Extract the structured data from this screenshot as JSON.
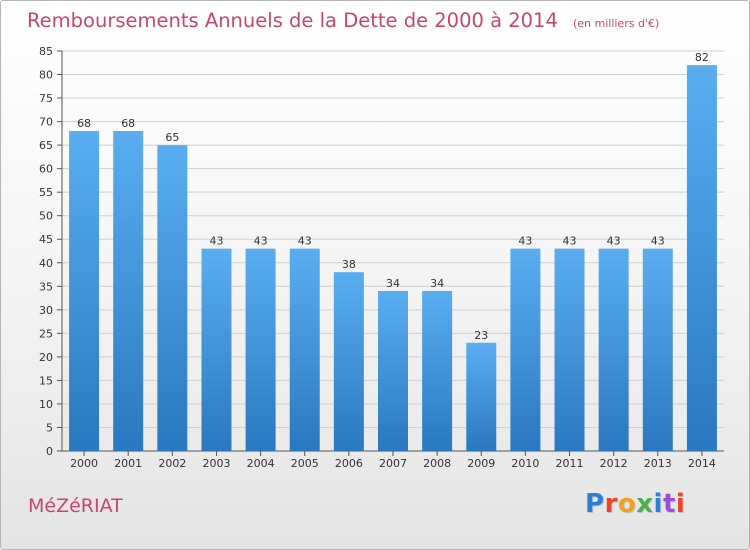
{
  "title": "Remboursements Annuels de la Dette de 2000 à 2014",
  "subtitle": "(en milliers d'€)",
  "commune": "MéZéRIAT",
  "brand": "Proxiti",
  "colors": {
    "title": "#c8466c",
    "bar_top": "#5aaef0",
    "bar_bottom": "#2a78bf",
    "grid": "#d0d0d0",
    "axis": "#555555"
  },
  "brand_letter_colors": [
    "#2b7fd4",
    "#e8462e",
    "#f0a21f",
    "#4caf50",
    "#2b7fd4",
    "#9c4fd6",
    "#e8462e"
  ],
  "chart_data": {
    "type": "bar",
    "title": "Remboursements Annuels de la Dette de 2000 à 2014",
    "subtitle": "(en milliers d'€)",
    "xlabel": "",
    "ylabel": "",
    "categories": [
      "2000",
      "2001",
      "2002",
      "2003",
      "2004",
      "2005",
      "2006",
      "2007",
      "2008",
      "2009",
      "2010",
      "2011",
      "2012",
      "2013",
      "2014"
    ],
    "values": [
      68,
      68,
      65,
      43,
      43,
      43,
      38,
      34,
      34,
      23,
      43,
      43,
      43,
      43,
      82
    ],
    "ylim": [
      0,
      85
    ],
    "yticks": [
      0,
      5,
      10,
      15,
      20,
      25,
      30,
      35,
      40,
      45,
      50,
      55,
      60,
      65,
      70,
      75,
      80,
      85
    ],
    "grid": true,
    "legend": "none",
    "data_labels": true
  }
}
